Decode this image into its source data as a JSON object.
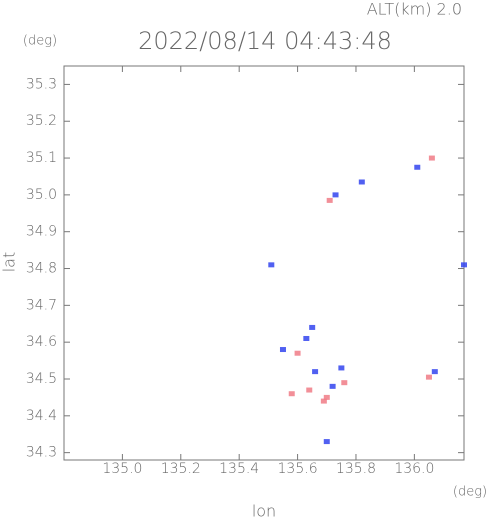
{
  "chart_data": {
    "type": "scatter",
    "title": "2022/08/14 04:43:48",
    "annotation": "ALT(km) 2.0",
    "y_unit": "(deg)",
    "x_unit": "(deg)",
    "x_label": "lon",
    "y_label": "lat",
    "xlim": [
      134.8,
      136.17
    ],
    "ylim": [
      34.28,
      35.35
    ],
    "xticks": [
      {
        "value": 135.0,
        "label": "135.0"
      },
      135.2,
      135.4,
      135.6,
      135.8,
      {
        "value": 136.0,
        "label": "136.0"
      }
    ],
    "yticks": [
      34.3,
      34.4,
      34.5,
      34.6,
      34.7,
      34.8,
      34.9,
      {
        "value": 35.0,
        "label": "35.0"
      },
      35.1,
      35.2,
      35.3
    ],
    "series": [
      {
        "color": "#f07b86",
        "x": [
          136.06,
          135.71,
          135.6,
          135.58,
          135.64,
          135.69,
          135.76,
          136.05,
          135.7
        ],
        "values": [
          35.1,
          34.985,
          34.57,
          34.46,
          34.47,
          34.44,
          34.49,
          34.505,
          34.45
        ]
      },
      {
        "color": "#3344ee",
        "x": [
          135.51,
          135.82,
          136.01,
          135.73,
          136.17,
          135.63,
          135.55,
          135.66,
          135.75,
          136.07,
          135.7,
          135.72,
          135.65
        ],
        "values": [
          34.81,
          35.035,
          35.075,
          35.0,
          34.81,
          34.61,
          34.58,
          34.52,
          34.53,
          34.52,
          34.33,
          34.48,
          34.64
        ]
      }
    ]
  }
}
